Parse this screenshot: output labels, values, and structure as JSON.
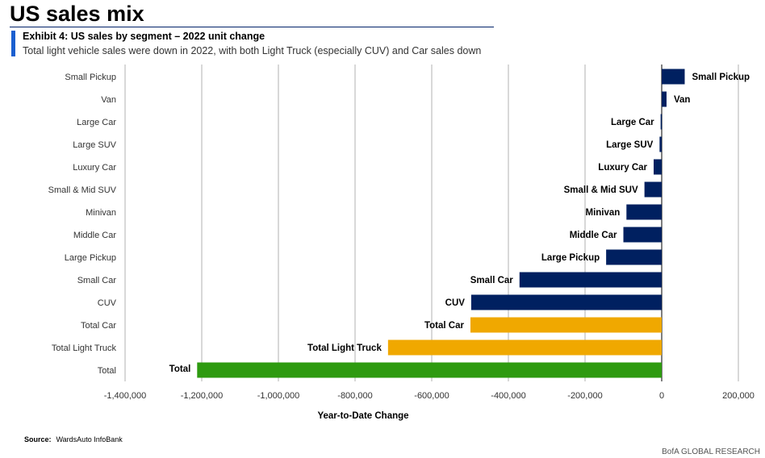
{
  "header": {
    "title": "US sales mix",
    "exhibit": "Exhibit 4: US sales by segment – 2022 unit change",
    "subtitle": "Total light vehicle sales were down in 2022, with both Light Truck (especially CUV) and Car sales down"
  },
  "footer": {
    "source_label": "Source:",
    "source": "WardsAuto InfoBank",
    "brand": "BofA GLOBAL RESEARCH"
  },
  "chart_data": {
    "type": "bar",
    "orientation": "horizontal",
    "title": "US sales by segment – 2022 unit change",
    "xlabel": "Year-to-Date Change",
    "ylabel": "",
    "xlim": [
      -1400000,
      200000
    ],
    "xticks": [
      -1400000,
      -1200000,
      -1000000,
      -800000,
      -600000,
      -400000,
      -200000,
      0,
      200000
    ],
    "xtick_labels": [
      "-1,400,000",
      "-1,200,000",
      "-1,000,000",
      "-800,000",
      "-600,000",
      "-400,000",
      "-200,000",
      "0",
      "200,000"
    ],
    "grid": true,
    "categories": [
      "Small Pickup",
      "Van",
      "Large Car",
      "Large SUV",
      "Luxury Car",
      "Small & Mid SUV",
      "Minivan",
      "Middle Car",
      "Large Pickup",
      "Small Car",
      "CUV",
      "Total Car",
      "Total Light Truck",
      "Total"
    ],
    "values": [
      60000,
      12600,
      -2800,
      -5600,
      -21000,
      -45000,
      -92000,
      -100000,
      -145000,
      -371000,
      -497000,
      -499000,
      -714000,
      -1212000
    ],
    "colors": [
      "#002060",
      "#002060",
      "#002060",
      "#002060",
      "#002060",
      "#002060",
      "#002060",
      "#002060",
      "#002060",
      "#002060",
      "#002060",
      "#f0a800",
      "#f0a800",
      "#2e9a10"
    ]
  }
}
